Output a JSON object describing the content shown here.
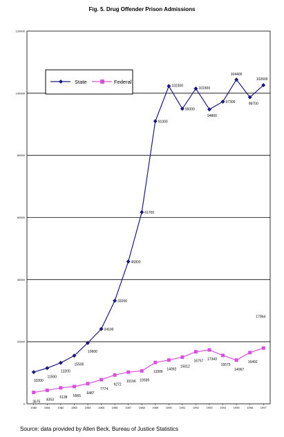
{
  "title": "Fig. 5. Drug Offender Prison Admissions",
  "source": "Source: data provided by Allen Beck, Bureau of Justice Statistics",
  "colors": {
    "state": "#1a1a7a",
    "federal": "#d94fe0",
    "grid": "#000000"
  },
  "chart_data": {
    "type": "line",
    "title": "Fig. 5. Drug Offender Prison Admissions",
    "x": [
      "1980",
      "1981",
      "1982",
      "1983",
      "1984",
      "1985",
      "1986",
      "1987",
      "1988",
      "1989",
      "1990",
      "1991",
      "1992",
      "1993",
      "1994",
      "1995",
      "1996",
      "1997"
    ],
    "ylim": [
      0,
      120000
    ],
    "yticks": [
      "0",
      "20000",
      "40000",
      "60000",
      "80000",
      "100000",
      "120000"
    ],
    "grid": "horizontal",
    "legend_position": "top-left",
    "series": [
      {
        "name": "State",
        "marker": "diamond",
        "values": [
          10200,
          11500,
          13200,
          15500,
          19600,
          24100,
          33200,
          45800,
          61700,
          91000,
          102300,
          95000,
          101500,
          94800,
          97300,
          104400,
          98700,
          102600
        ],
        "labels": [
          "10200",
          "11500",
          "13200",
          "15500",
          "19600",
          "24100",
          "33200",
          "45800",
          "61700",
          "91000",
          "102300",
          "95000",
          "101500",
          "94800",
          "97300",
          "104400",
          "98700",
          "102600"
        ]
      },
      {
        "name": "Federal",
        "marker": "square",
        "values": [
          3675,
          4353,
          5138,
          5565,
          6487,
          7774,
          9272,
          10196,
          10599,
          13306,
          14092,
          15012,
          16757,
          17343,
          15575,
          14067,
          16492,
          17964
        ],
        "labels": [
          "3675",
          "4353",
          "5138",
          "5565",
          "6487",
          "7774",
          "9272",
          "10196",
          "10599",
          "13306",
          "14092",
          "15012",
          "16757",
          "17343",
          "15575",
          "14067",
          "16492",
          "17964"
        ]
      }
    ]
  }
}
